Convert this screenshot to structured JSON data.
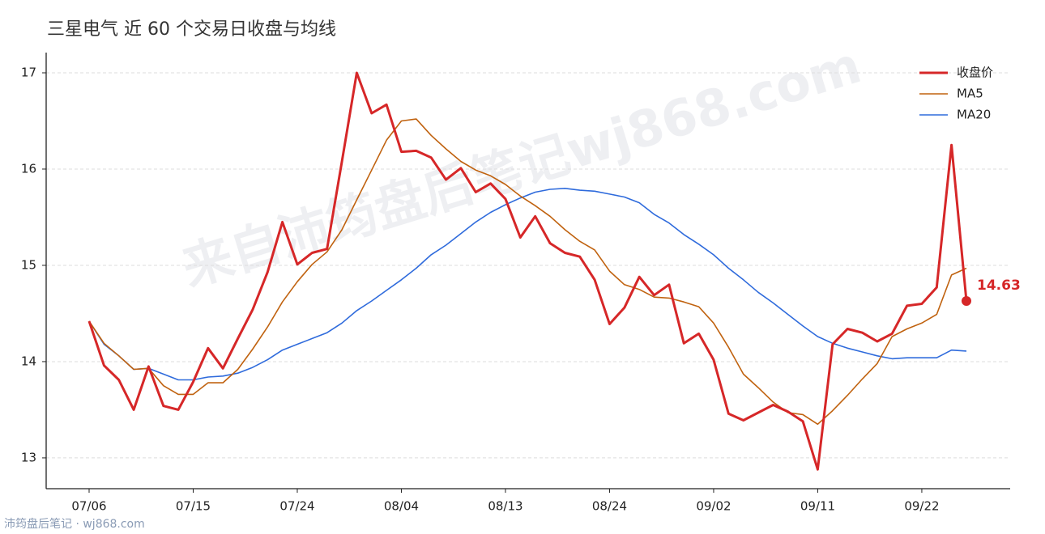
{
  "chart_data": {
    "type": "line",
    "title": "三星电气 近 60 个交易日收盘与均线",
    "watermark": "来自沛筠盘后笔记wj868.com",
    "footer": "沛筠盘后笔记 · wj868.com",
    "categories": [
      "07/06",
      null,
      null,
      null,
      null,
      null,
      null,
      "07/15",
      null,
      null,
      null,
      null,
      null,
      null,
      "07/24",
      null,
      null,
      null,
      null,
      null,
      null,
      "08/04",
      null,
      null,
      null,
      null,
      null,
      null,
      "08/13",
      null,
      null,
      null,
      null,
      null,
      null,
      "08/24",
      null,
      null,
      null,
      null,
      null,
      null,
      "09/02",
      null,
      null,
      null,
      null,
      null,
      null,
      "09/11",
      null,
      null,
      null,
      null,
      null,
      null,
      "09/22",
      null,
      null,
      null
    ],
    "series": [
      {
        "name": "收盘价",
        "color": "#d62728",
        "width": 3,
        "values": [
          14.42,
          13.96,
          13.81,
          13.5,
          13.95,
          13.54,
          13.5,
          13.79,
          14.14,
          13.93,
          14.24,
          14.54,
          14.93,
          15.45,
          15.01,
          15.13,
          15.17,
          16.08,
          17.0,
          16.58,
          16.67,
          16.18,
          16.19,
          16.12,
          15.89,
          16.01,
          15.76,
          15.85,
          15.69,
          15.29,
          15.51,
          15.23,
          15.13,
          15.09,
          14.85,
          14.39,
          14.56,
          14.88,
          14.69,
          14.8,
          14.19,
          14.29,
          14.02,
          13.46,
          13.39,
          13.47,
          13.55,
          13.48,
          13.38,
          12.88,
          14.18,
          14.34,
          14.3,
          14.21,
          14.29,
          14.58,
          14.6,
          14.77,
          16.25,
          14.63
        ]
      },
      {
        "name": "MA5",
        "color": "#c0620f",
        "width": 1.6,
        "values": [
          14.42,
          14.19,
          14.06,
          13.92,
          13.93,
          13.75,
          13.66,
          13.66,
          13.78,
          13.78,
          13.92,
          14.13,
          14.36,
          14.62,
          14.83,
          15.01,
          15.14,
          15.37,
          15.68,
          15.99,
          16.3,
          16.5,
          16.52,
          16.35,
          16.21,
          16.08,
          15.99,
          15.93,
          15.84,
          15.72,
          15.62,
          15.51,
          15.37,
          15.25,
          15.16,
          14.94,
          14.8,
          14.75,
          14.67,
          14.66,
          14.62,
          14.57,
          14.4,
          14.15,
          13.87,
          13.73,
          13.58,
          13.47,
          13.45,
          13.35,
          13.49,
          13.65,
          13.82,
          13.98,
          14.26,
          14.34,
          14.4,
          14.49,
          14.9,
          14.97
        ]
      },
      {
        "name": "MA20",
        "color": "#2f6bdc",
        "width": 1.6,
        "values": [
          14.42,
          14.18,
          14.06,
          13.92,
          13.93,
          13.87,
          13.81,
          13.81,
          13.84,
          13.85,
          13.88,
          13.94,
          14.02,
          14.12,
          14.18,
          14.24,
          14.3,
          14.4,
          14.53,
          14.63,
          14.74,
          14.85,
          14.97,
          15.11,
          15.21,
          15.33,
          15.45,
          15.55,
          15.63,
          15.7,
          15.76,
          15.79,
          15.8,
          15.78,
          15.77,
          15.74,
          15.71,
          15.65,
          15.53,
          15.44,
          15.32,
          15.22,
          15.11,
          14.97,
          14.85,
          14.72,
          14.61,
          14.49,
          14.37,
          14.26,
          14.19,
          14.14,
          14.1,
          14.06,
          14.03,
          14.04,
          14.04,
          14.04,
          14.12,
          14.11
        ]
      }
    ],
    "ylim": [
      12.68,
      17.21
    ],
    "yticks": [
      13,
      14,
      15,
      16,
      17
    ],
    "grid": true,
    "legend": "upper right"
  }
}
